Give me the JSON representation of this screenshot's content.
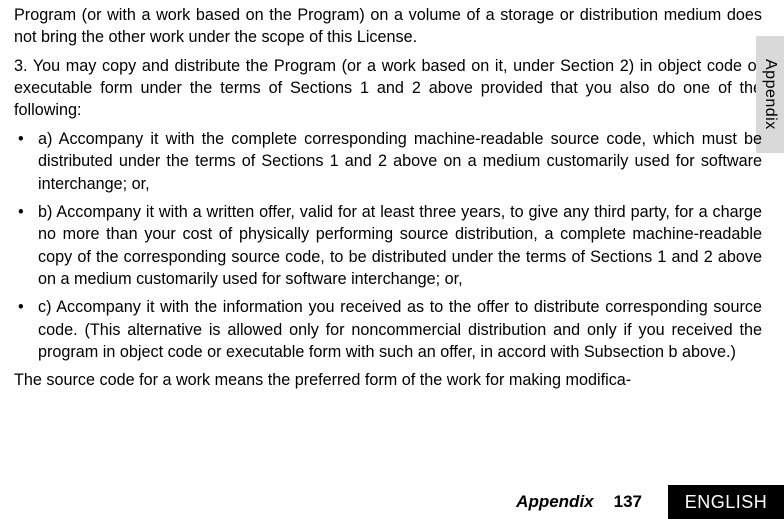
{
  "sideTab": "Appendix",
  "paragraphs": {
    "p1": "Program (or with a work based on the Program) on a volume of a storage or distribu­tion medium does not bring the other work under the scope of this License.",
    "p2": "3. You may copy and distribute the Program (or a work based on it, under Section 2) in object code or executable form under the terms of Sections 1 and 2 above provided that you also do one of the following:",
    "p3": "The source code for a work means the preferred form of the work for making modifica-"
  },
  "bullets": {
    "b1": "a) Accompany it with the complete corresponding machine-readable source code, which must be distributed under the terms of Sections 1 and 2 above on a medium customarily used for software interchange; or,",
    "b2": "b) Accompany it with a written offer, valid for at least three years, to give any third party, for a charge no more than your cost of physically performing source distribu­tion, a complete machine-readable copy of the corresponding source code, to be distributed under the terms of Sections 1 and 2 above on a medium customarily used for software interchange; or,",
    "b3": "c) Accompany it with the information you received as to the offer to distribute corre­sponding source code. (This alternative is allowed only for noncommercial distribu­tion and only if you received the program in object code or executable form with such an offer, in accord with Subsection b above.)"
  },
  "footer": {
    "section": "Appendix",
    "page": "137",
    "language": "ENGLISH"
  }
}
